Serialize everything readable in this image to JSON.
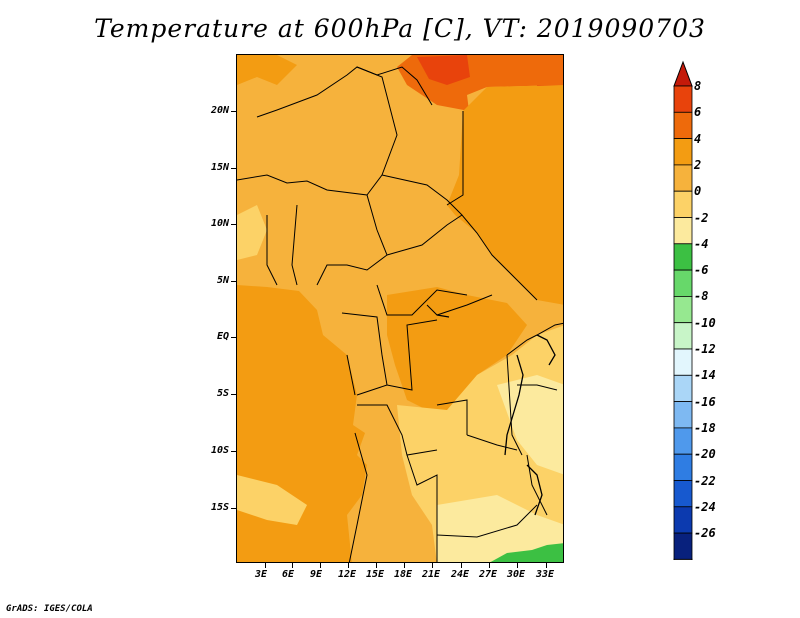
{
  "title": "Temperature at 600hPa [C], VT: 2019090703",
  "credit": "GrADS: IGES/COLA",
  "map": {
    "variable": "Temperature",
    "level": "600hPa",
    "units": "C",
    "valid_time": "2019090703",
    "lon_labels": [
      "3E",
      "6E",
      "9E",
      "12E",
      "15E",
      "18E",
      "21E",
      "24E",
      "27E",
      "30E",
      "33E"
    ],
    "lat_labels": [
      "20N",
      "15N",
      "10N",
      "5N",
      "EQ",
      "5S",
      "10S",
      "15S"
    ],
    "colors": {
      "c_2_0": "#f6b23c",
      "c_4_2": "#f39c12",
      "c_6_4": "#ee6a0b",
      "c_8_6": "#e8430c",
      "c_0_m2": "#fcd267",
      "c_m2_m4": "#fcea9e",
      "c_m4_m6": "#3cc043",
      "border": "#000000"
    }
  },
  "colorbar": {
    "labels": [
      "8",
      "6",
      "4",
      "2",
      "0",
      "-2",
      "-4",
      "-6",
      "-8",
      "-10",
      "-12",
      "-14",
      "-16",
      "-18",
      "-20",
      "-22",
      "-24",
      "-26"
    ],
    "colors": [
      "#e8430c",
      "#ee6a0b",
      "#f39c12",
      "#f6b23c",
      "#fcd267",
      "#fcea9e",
      "#3cc043",
      "#67d86a",
      "#96e890",
      "#c8f5c8",
      "#e2f6fd",
      "#aad6f7",
      "#7eb9f2",
      "#4f99ec",
      "#2f7de3",
      "#1759cf",
      "#0c3aaf",
      "#08217d"
    ],
    "over_color": "#c41a0a",
    "under_color": "#dddff8"
  }
}
